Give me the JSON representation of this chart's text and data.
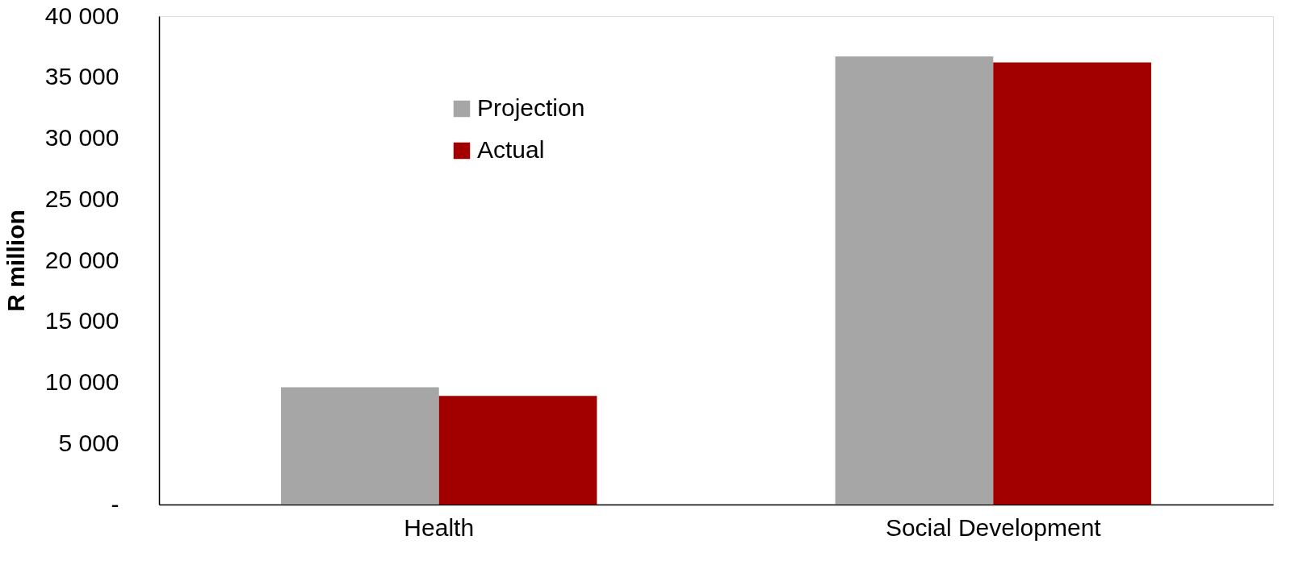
{
  "chart_data": {
    "type": "bar",
    "ylabel": "R million",
    "categories": [
      "Health",
      "Social Development"
    ],
    "series": [
      {
        "name": "Projection",
        "color": "#a6a6a6",
        "values": [
          9600,
          36700
        ]
      },
      {
        "name": "Actual",
        "color": "#a20000",
        "values": [
          8900,
          36200
        ]
      }
    ],
    "ylim": [
      0,
      40000
    ],
    "yticks": [
      {
        "value": 0,
        "label": "-"
      },
      {
        "value": 5000,
        "label": "5 000"
      },
      {
        "value": 10000,
        "label": "10 000"
      },
      {
        "value": 15000,
        "label": "15 000"
      },
      {
        "value": 20000,
        "label": "20 000"
      },
      {
        "value": 25000,
        "label": "25 000"
      },
      {
        "value": 30000,
        "label": "30 000"
      },
      {
        "value": 35000,
        "label": "35 000"
      },
      {
        "value": 40000,
        "label": "40 000"
      }
    ],
    "grid": false,
    "legend": "top left"
  }
}
